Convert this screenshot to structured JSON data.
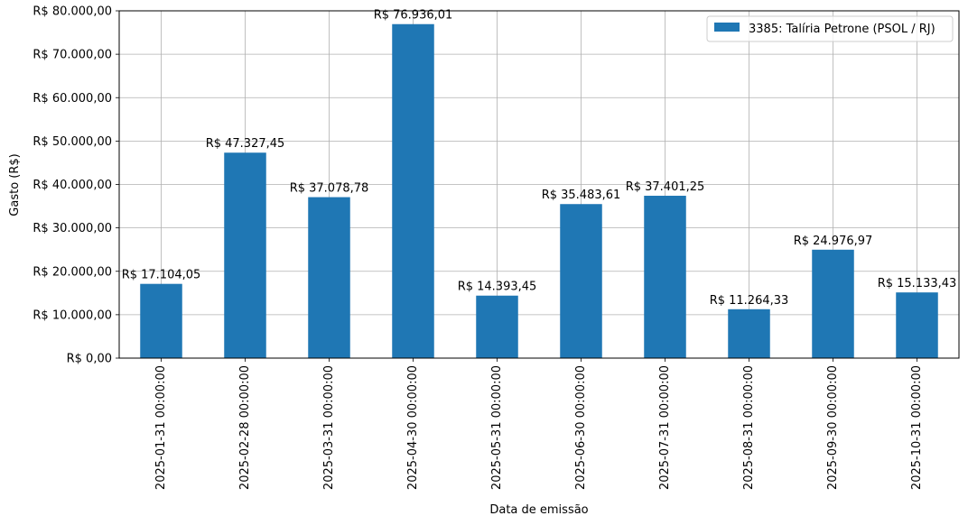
{
  "chart_data": {
    "type": "bar",
    "categories": [
      "2025-01-31 00:00:00",
      "2025-02-28 00:00:00",
      "2025-03-31 00:00:00",
      "2025-04-30 00:00:00",
      "2025-05-31 00:00:00",
      "2025-06-30 00:00:00",
      "2025-07-31 00:00:00",
      "2025-08-31 00:00:00",
      "2025-09-30 00:00:00",
      "2025-10-31 00:00:00"
    ],
    "series": [
      {
        "name": "3385: Talíria Petrone (PSOL / RJ)",
        "values": [
          17104.05,
          47327.45,
          37078.78,
          76936.01,
          14393.45,
          35483.61,
          37401.25,
          11264.33,
          24976.97,
          15133.43
        ],
        "labels": [
          "R$ 17.104,05",
          "R$ 47.327,45",
          "R$ 37.078,78",
          "R$ 76.936,01",
          "R$ 14.393,45",
          "R$ 35.483,61",
          "R$ 37.401,25",
          "R$ 11.264,33",
          "R$ 24.976,97",
          "R$ 15.133,43"
        ],
        "color": "#1f77b4"
      }
    ],
    "xlabel": "Data de emissão",
    "ylabel": "Gasto (R$)",
    "ylim": [
      0,
      80000
    ],
    "yticks": [
      0,
      10000,
      20000,
      30000,
      40000,
      50000,
      60000,
      70000,
      80000
    ],
    "ytick_labels": [
      "R$ 0,00",
      "R$ 10.000,00",
      "R$ 20.000,00",
      "R$ 30.000,00",
      "R$ 40.000,00",
      "R$ 50.000,00",
      "R$ 60.000,00",
      "R$ 70.000,00",
      "R$ 80.000,00"
    ],
    "grid": true,
    "legend_position": "top-right"
  }
}
